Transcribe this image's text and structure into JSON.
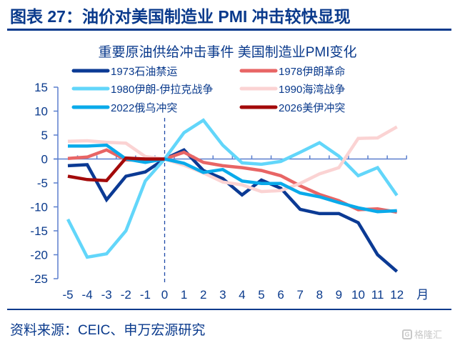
{
  "header": {
    "figure_title": "图表 27：油价对美国制造业 PMI 冲击较快显现"
  },
  "footer": {
    "source": "资料来源：CEIC、申万宏源研究",
    "watermark": "格隆汇"
  },
  "chart_data": {
    "type": "line",
    "title": "重要原油供给冲击事件 美国制造业PMI变化",
    "xlabel": "月",
    "ylabel": "",
    "x": [
      -5,
      -4,
      -3,
      -2,
      -1,
      0,
      1,
      2,
      3,
      4,
      5,
      6,
      7,
      8,
      9,
      10,
      11,
      12
    ],
    "x_tick_labels": [
      "-5",
      "-4",
      "-3",
      "-2",
      "-1",
      "0",
      "1",
      "2",
      "3",
      "4",
      "5",
      "6",
      "7",
      "8",
      "9",
      "10",
      "11",
      "12"
    ],
    "x_unit_label": "月",
    "ylim": [
      -25,
      15
    ],
    "y_ticks": [
      15,
      10,
      5,
      0,
      -5,
      -10,
      -15,
      -20,
      -25
    ],
    "y_tick_labels": [
      "15",
      "10",
      "5",
      "0",
      "-5",
      "-10",
      "-15",
      "-20",
      "-25"
    ],
    "grid": false,
    "legend_position": "top",
    "event_marker": {
      "x": 0,
      "style": "dashed"
    },
    "series": [
      {
        "name": "1973石油禁运",
        "color": "#0b3a94",
        "values": [
          -1.4,
          -1.2,
          -8.5,
          -3.6,
          -2.7,
          0,
          1.9,
          -2.4,
          -4.1,
          -7.5,
          -4.4,
          -6.1,
          -10.5,
          -11.4,
          -11.4,
          -13.3,
          -20.0,
          -23.5
        ]
      },
      {
        "name": "1978伊朗革命",
        "color": "#e86565",
        "values": [
          0.1,
          0.4,
          1.9,
          -0.2,
          -0.3,
          0,
          1.4,
          -0.7,
          -1.4,
          -1.8,
          -2.4,
          -3.5,
          -5.6,
          -7.4,
          -8.7,
          -10.6,
          -10.4,
          -11.1
        ]
      },
      {
        "name": "1980伊朗-伊拉克战争",
        "color": "#62d6fa",
        "values": [
          -12.6,
          -20.5,
          -19.8,
          -15.0,
          -4.6,
          0,
          5.5,
          8.1,
          2.9,
          -0.8,
          -1.1,
          -0.5,
          1.4,
          3.4,
          0.6,
          -3.5,
          -1.8,
          -7.6
        ]
      },
      {
        "name": "1990海湾战争",
        "color": "#fbd3d3",
        "values": [
          3.7,
          3.8,
          3.5,
          3.3,
          0.5,
          0,
          -1.3,
          -2.9,
          -4.8,
          -5.4,
          -6.8,
          -6.6,
          -5.1,
          -3.1,
          -1.8,
          4.3,
          4.4,
          6.7
        ]
      },
      {
        "name": "2022俄乌冲突",
        "color": "#0aaaea",
        "values": [
          2.7,
          2.7,
          2.9,
          0,
          -0.7,
          0,
          -0.9,
          -2.8,
          -2.2,
          -4.6,
          -5.1,
          -5.1,
          -7.1,
          -7.9,
          -9.1,
          -10.2,
          -11.0,
          -10.8
        ]
      },
      {
        "name": "2026美伊冲突",
        "color": "#a30a0a",
        "values": [
          -3.6,
          -4.3,
          -4.5,
          0.2,
          0,
          0,
          null,
          null,
          null,
          null,
          null,
          null,
          null,
          null,
          null,
          null,
          null,
          null
        ]
      }
    ]
  }
}
